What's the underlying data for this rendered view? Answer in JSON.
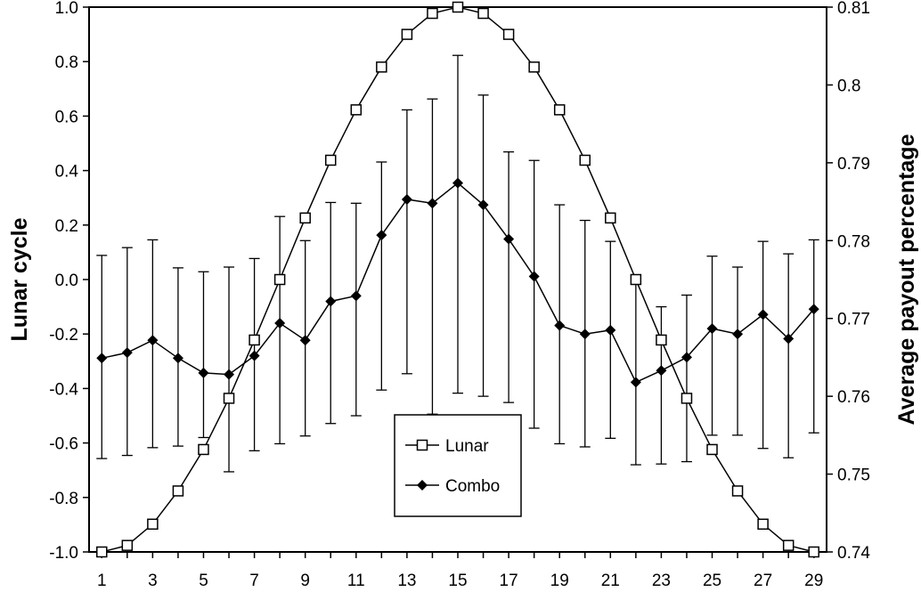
{
  "chart_data": {
    "type": "line",
    "x": [
      1,
      2,
      3,
      4,
      5,
      6,
      7,
      8,
      9,
      10,
      11,
      12,
      13,
      14,
      15,
      16,
      17,
      18,
      19,
      20,
      21,
      22,
      23,
      24,
      25,
      26,
      27,
      28,
      29
    ],
    "xlim": [
      0.5,
      29.5
    ],
    "x_tick_labels": [
      "1",
      "3",
      "5",
      "7",
      "9",
      "11",
      "13",
      "15",
      "17",
      "19",
      "21",
      "23",
      "25",
      "27",
      "29"
    ],
    "y_left": {
      "label": "Lunar cycle",
      "lim": [
        -1.0,
        1.0
      ],
      "tick_labels": [
        "1.0",
        "0.8",
        "0.6",
        "0.4",
        "0.2",
        "0.0",
        "-0.2",
        "-0.4",
        "-0.6",
        "-0.8",
        "-1.0"
      ]
    },
    "y_right": {
      "label": "Average payout percentage",
      "lim": [
        0.74,
        0.81
      ],
      "tick_labels": [
        "0.81",
        "0.8",
        "0.79",
        "0.78",
        "0.77",
        "0.76",
        "0.75",
        "0.74"
      ]
    },
    "grid": false,
    "legend": {
      "position": "bottom-center"
    },
    "series": [
      {
        "name": "Lunar",
        "axis": "left",
        "marker": "open-square",
        "values": [
          -1.0,
          -0.976,
          -0.898,
          -0.776,
          -0.624,
          -0.436,
          -0.222,
          0.0,
          0.226,
          0.438,
          0.623,
          0.78,
          0.9,
          0.977,
          1.0,
          0.977,
          0.9,
          0.78,
          0.623,
          0.438,
          0.226,
          0.0,
          -0.222,
          -0.436,
          -0.624,
          -0.776,
          -0.898,
          -0.976,
          -1.0
        ]
      },
      {
        "name": "Combo",
        "axis": "right",
        "marker": "filled-diamond",
        "values": [
          0.7649,
          0.7656,
          0.7672,
          0.7649,
          0.763,
          0.7628,
          0.7652,
          0.7694,
          0.7672,
          0.7722,
          0.7729,
          0.7807,
          0.7853,
          0.7848,
          0.7874,
          0.7846,
          0.7802,
          0.7754,
          0.7691,
          0.768,
          0.7685,
          0.7618,
          0.7633,
          0.765,
          0.7687,
          0.768,
          0.7705,
          0.7674,
          0.7712
        ],
        "error_bars": [
          [
            0.752,
            0.7781
          ],
          [
            0.7524,
            0.7791
          ],
          [
            0.7534,
            0.7801
          ],
          [
            0.7536,
            0.7765
          ],
          [
            0.7547,
            0.776
          ],
          [
            0.7503,
            0.7766
          ],
          [
            0.753,
            0.7777
          ],
          [
            0.7539,
            0.7831
          ],
          [
            0.7549,
            0.78
          ],
          [
            0.7565,
            0.7849
          ],
          [
            0.7575,
            0.7848
          ],
          [
            0.7608,
            0.7901
          ],
          [
            0.7629,
            0.7968
          ],
          [
            0.7577,
            0.7982
          ],
          [
            0.7604,
            0.8038
          ],
          [
            0.76,
            0.7987
          ],
          [
            0.7592,
            0.7914
          ],
          [
            0.7559,
            0.7903
          ],
          [
            0.7539,
            0.7846
          ],
          [
            0.7535,
            0.7826
          ],
          [
            0.7546,
            0.7799
          ],
          [
            0.7512,
            0.7752
          ],
          [
            0.7513,
            0.7715
          ],
          [
            0.7516,
            0.773
          ],
          [
            0.755,
            0.778
          ],
          [
            0.755,
            0.7766
          ],
          [
            0.7533,
            0.7799
          ],
          [
            0.7521,
            0.7783
          ],
          [
            0.7553,
            0.7801
          ]
        ]
      }
    ]
  }
}
